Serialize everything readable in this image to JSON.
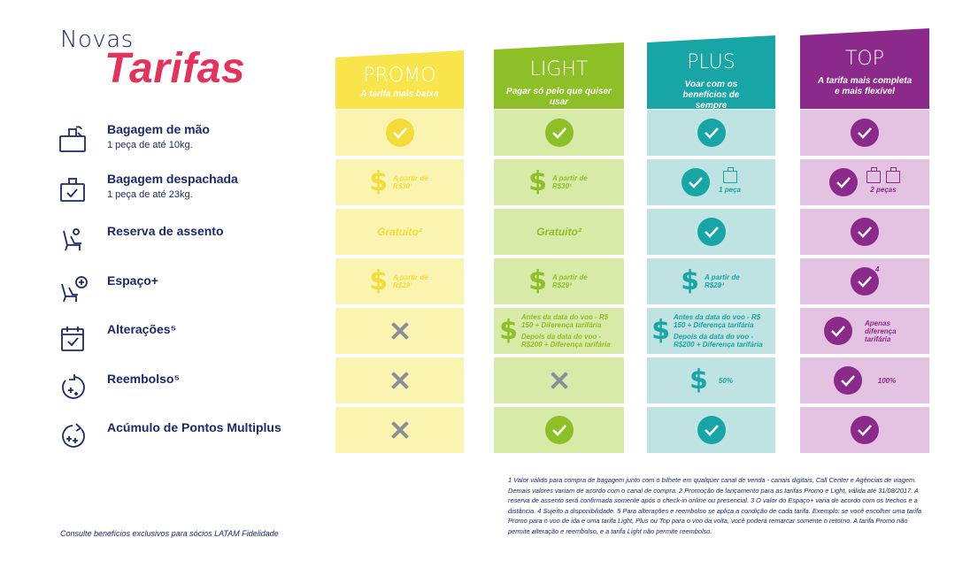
{
  "heading": {
    "line1": "Novas",
    "line2": "Tarifas"
  },
  "colors": {
    "promo": "#f8e44b",
    "promo_light": "#fbf4b0",
    "promo_text": "#f3dc3a",
    "light": "#8dbf26",
    "light_bg": "#d8eaa8",
    "plus": "#17a5a5",
    "plus_bg": "#bfe2e3",
    "top": "#8b2a8b",
    "top_bg": "#e4c3e2",
    "navy": "#1b2a6b",
    "pink": "#e3325c"
  },
  "features": [
    {
      "name": "Bagagem de mão",
      "sub": "1 peça de até 10kg.",
      "icon": "carry-on-bag-icon"
    },
    {
      "name": "Bagagem despachada",
      "sub": "1 peça de até 23kg.",
      "icon": "checked-bag-icon"
    },
    {
      "name": "Reserva de assento",
      "sub": "",
      "icon": "seat-icon"
    },
    {
      "name": "Espaço+",
      "sub": "",
      "icon": "seat-plus-icon"
    },
    {
      "name": "Alterações⁵",
      "sub": "",
      "icon": "calendar-check-icon"
    },
    {
      "name": "Reembolso⁵",
      "sub": "",
      "icon": "refund-icon"
    },
    {
      "name": "Acúmulo de Pontos Multiplus",
      "sub": "",
      "icon": "points-icon"
    }
  ],
  "tariffs": [
    {
      "name": "PROMO",
      "desc": "A tarifa mais baixa"
    },
    {
      "name": "LIGHT",
      "desc": "Pagar só pelo que quiser usar"
    },
    {
      "name": "PLUS",
      "desc": "Voar com os benefícios de sempre"
    },
    {
      "name": "TOP",
      "desc": "A tarifa mais completa e mais flexível"
    }
  ],
  "cells": {
    "promo_bag_price": "A partir de R$30¹",
    "promo_seat": "Gratuito²",
    "promo_espaco_price": "A partir de R$29³",
    "light_bag_price": "A partir de R$30¹",
    "light_seat": "Gratuito²",
    "light_espaco_price": "A partir de R$29³",
    "light_alt_before": "Antes da data do voo - R$ 150 + Diferença tarifária",
    "light_alt_after": "Depois da data do voo - R$200 + Diferença tarifária",
    "plus_bag_label": "1 peça",
    "plus_espaco_price": "A partir de R$29³",
    "plus_alt_before": "Antes da data do voo - R$ 150 + Diferença tarifária",
    "plus_alt_after": "Depois da data do voo - R$200 + Diferença tarifária",
    "plus_refund": "50%",
    "top_bag_label": "2 peças",
    "top_espaco_note": "4",
    "top_alt": "Apenas diferença tarifária",
    "top_refund": "100%"
  },
  "footer": {
    "left": "Consulte benefícios exclusivos para sócios LATAM Fidelidade",
    "footnote": "1 Valor válido para compra de bagagem junto com o bilhete em qualquer canal de venda - canais digitais, Call Center e Agências de viagem. Demais valores variam de acordo com o canal de compra.  2 Promoção de lançamento para as tarifas Promo e Light, válida até 31/08/2017. A reserva de assento será confirmada somente após o check-in online ou presencial. 3 O valor do Espaço+ varia de acordo com os trechos e a distância. 4 Sujeito a disponibilidade. 5 Para alterações e reembolso se aplica a condição de cada tarifa. Exemplo: se você escolher uma tarifa Promo para o voo de ida e uma tarifa Light, Plus ou Top para o voo da volta, você poderá remarcar somente o retorno. A tarifa Promo não permite alteração e reembolso, e a tarifa Light não permite reembolso."
  }
}
